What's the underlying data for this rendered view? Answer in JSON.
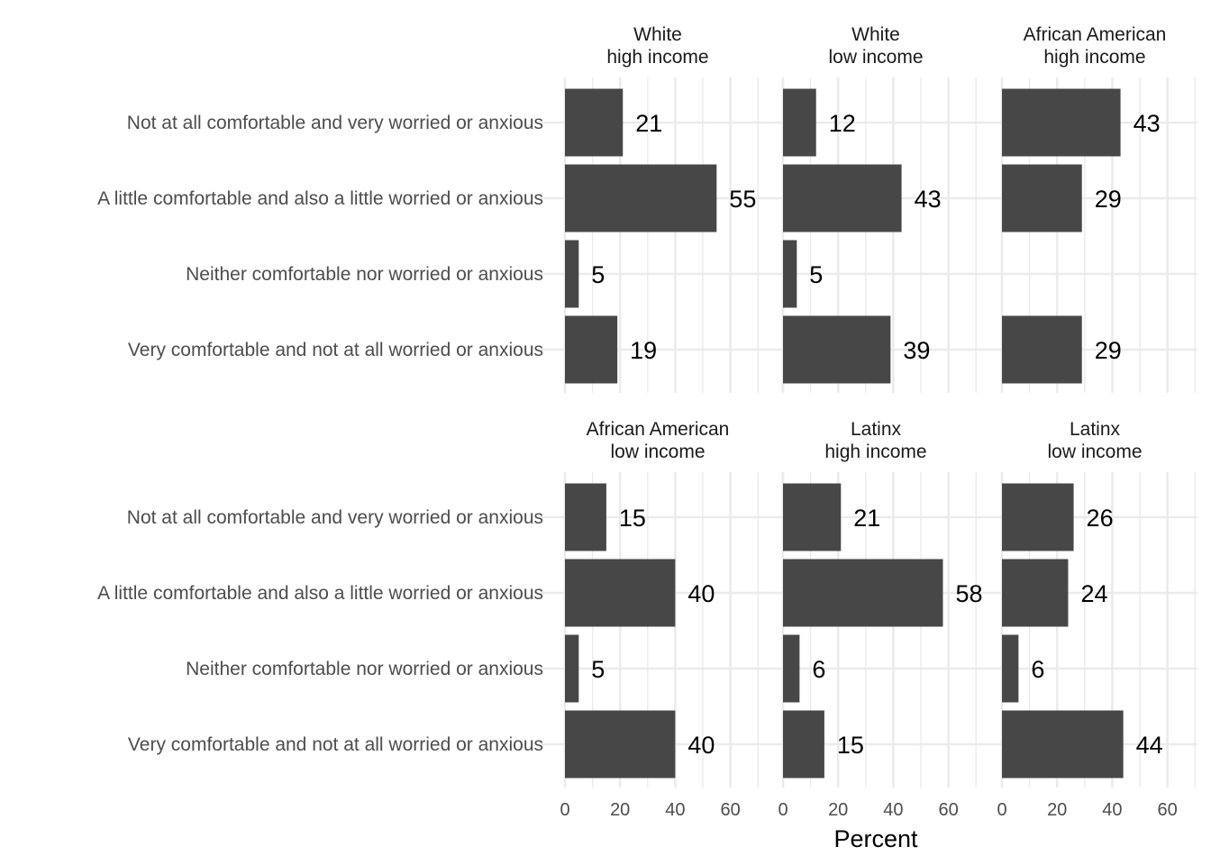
{
  "chart_data": {
    "type": "bar",
    "orientation": "horizontal",
    "xlabel": "Percent",
    "ylabel": "",
    "xlim": [
      0,
      70
    ],
    "xticks": [
      0,
      20,
      40,
      60
    ],
    "grid": true,
    "bar_color": "#474747",
    "grid_color": "#ebebeb",
    "categories": [
      "Not at all comfortable and very worried or anxious",
      "A little comfortable and also a little worried or anxious",
      "Neither comfortable nor worried or anxious",
      "Very comfortable and not at all worried or anxious"
    ],
    "panels": [
      {
        "title_line1": "White",
        "title_line2": "high income",
        "values": [
          21,
          55,
          5,
          19
        ]
      },
      {
        "title_line1": "White",
        "title_line2": "low income",
        "values": [
          12,
          43,
          5,
          39
        ]
      },
      {
        "title_line1": "African American",
        "title_line2": "high income",
        "values": [
          43,
          29,
          null,
          29
        ]
      },
      {
        "title_line1": "African American",
        "title_line2": "low income",
        "values": [
          15,
          40,
          5,
          40
        ]
      },
      {
        "title_line1": "Latinx",
        "title_line2": "high income",
        "values": [
          21,
          58,
          6,
          15
        ]
      },
      {
        "title_line1": "Latinx",
        "title_line2": "low income",
        "values": [
          26,
          24,
          6,
          44
        ]
      }
    ]
  }
}
